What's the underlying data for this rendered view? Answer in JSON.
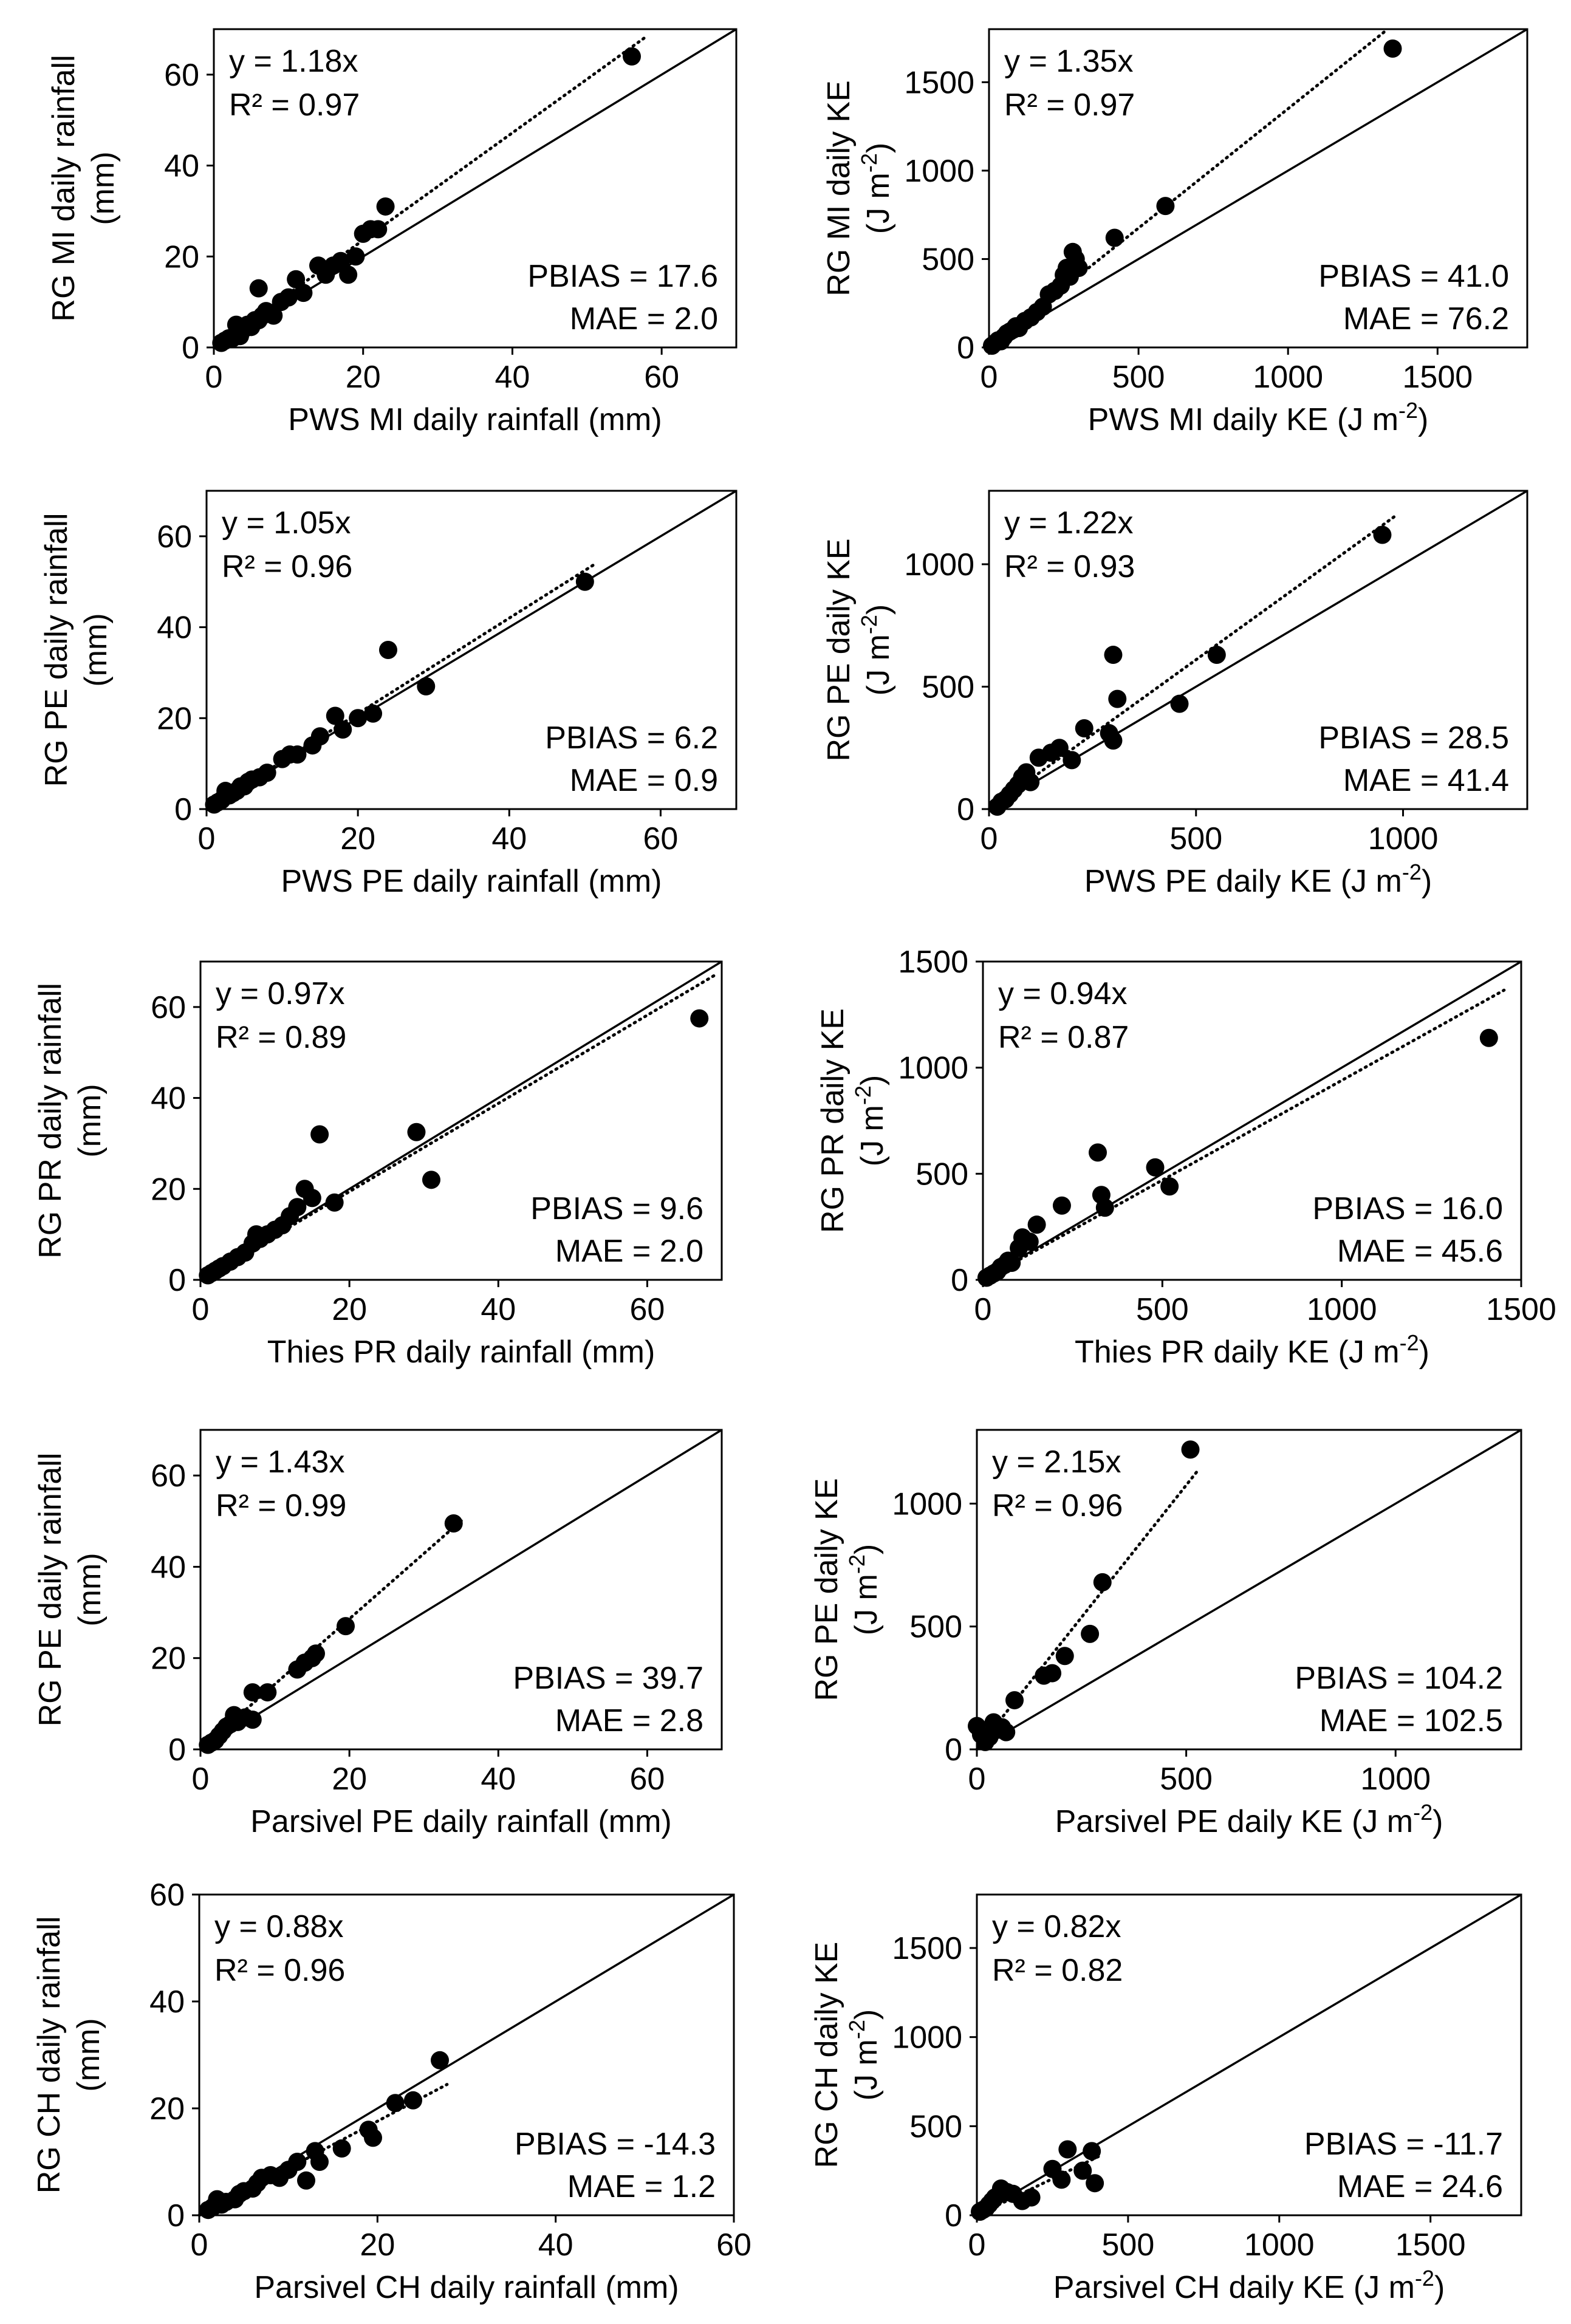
{
  "figure": {
    "description_title": "Rain gauge vs disdrometer daily rainfall and kinetic energy scatter plots"
  },
  "chart_data": [
    {
      "type": "scatter",
      "panel": "MI rainfall",
      "xlabel": "PWS MI daily rainfall (mm)",
      "ylabel_line1": "RG MI daily rainfall",
      "ylabel_line2": "(mm)",
      "xlim": [
        0,
        70
      ],
      "ylim": [
        0,
        70
      ],
      "xticks": [
        0,
        20,
        40,
        60
      ],
      "yticks": [
        0,
        20,
        40,
        60
      ],
      "fit_slope": 1.18,
      "equation": "y = 1.18x",
      "r2": "R² = 0.97",
      "pbias": "PBIAS = 17.6",
      "mae": "MAE = 2.0",
      "points": [
        [
          1,
          1
        ],
        [
          1.5,
          1.5
        ],
        [
          2,
          2
        ],
        [
          2.5,
          2
        ],
        [
          3,
          3
        ],
        [
          3,
          5
        ],
        [
          3.5,
          2.5
        ],
        [
          4,
          4
        ],
        [
          4.5,
          5
        ],
        [
          5,
          4.5
        ],
        [
          5.5,
          6
        ],
        [
          6,
          6
        ],
        [
          6,
          13
        ],
        [
          6.5,
          7
        ],
        [
          7,
          8
        ],
        [
          8,
          7
        ],
        [
          9,
          10
        ],
        [
          10,
          11
        ],
        [
          11,
          15
        ],
        [
          12,
          12
        ],
        [
          14,
          18
        ],
        [
          15,
          16
        ],
        [
          16,
          18
        ],
        [
          17,
          19
        ],
        [
          18,
          16
        ],
        [
          19,
          20
        ],
        [
          20,
          25
        ],
        [
          21,
          26
        ],
        [
          22,
          26
        ],
        [
          23,
          31
        ],
        [
          56,
          64
        ]
      ]
    },
    {
      "type": "scatter",
      "panel": "MI kinetic energy",
      "xlabel": "PWS MI daily KE (J m",
      "ylabel_line1": "RG MI daily KE",
      "ylabel_line2": "(J m",
      "xlim": [
        0,
        1800
      ],
      "ylim": [
        0,
        1800
      ],
      "xticks": [
        0,
        500,
        1000,
        1500
      ],
      "yticks": [
        0,
        500,
        1000,
        1500
      ],
      "fit_slope": 1.35,
      "equation": "y = 1.35x",
      "r2": "R² = 0.97",
      "pbias": "PBIAS = 41.0",
      "mae": "MAE = 76.2",
      "points": [
        [
          10,
          10
        ],
        [
          20,
          25
        ],
        [
          30,
          40
        ],
        [
          40,
          35
        ],
        [
          50,
          60
        ],
        [
          60,
          80
        ],
        [
          70,
          90
        ],
        [
          80,
          100
        ],
        [
          90,
          120
        ],
        [
          100,
          110
        ],
        [
          120,
          150
        ],
        [
          140,
          170
        ],
        [
          160,
          200
        ],
        [
          180,
          230
        ],
        [
          200,
          300
        ],
        [
          220,
          320
        ],
        [
          240,
          350
        ],
        [
          250,
          410
        ],
        [
          260,
          450
        ],
        [
          270,
          400
        ],
        [
          280,
          540
        ],
        [
          290,
          500
        ],
        [
          300,
          450
        ],
        [
          420,
          620
        ],
        [
          590,
          800
        ],
        [
          1350,
          1690
        ]
      ]
    },
    {
      "type": "scatter",
      "panel": "PE rainfall",
      "xlabel": "PWS PE daily rainfall (mm)",
      "ylabel_line1": "RG PE daily rainfall",
      "ylabel_line2": "(mm)",
      "xlim": [
        0,
        70
      ],
      "ylim": [
        0,
        70
      ],
      "xticks": [
        0,
        20,
        40,
        60
      ],
      "yticks": [
        0,
        20,
        40,
        60
      ],
      "fit_slope": 1.05,
      "equation": "y = 1.05x",
      "r2": "R² = 0.96",
      "pbias": "PBIAS = 6.2",
      "mae": "MAE = 0.9",
      "points": [
        [
          1,
          1
        ],
        [
          1.5,
          1.5
        ],
        [
          2,
          2
        ],
        [
          2.5,
          4
        ],
        [
          3,
          3
        ],
        [
          3.5,
          3.5
        ],
        [
          4,
          4
        ],
        [
          4.5,
          5
        ],
        [
          5,
          5
        ],
        [
          5.5,
          6
        ],
        [
          6,
          6.5
        ],
        [
          7,
          7
        ],
        [
          8,
          8
        ],
        [
          10,
          11
        ],
        [
          11,
          12
        ],
        [
          12,
          12
        ],
        [
          14,
          14
        ],
        [
          15,
          16
        ],
        [
          17,
          20.5
        ],
        [
          18,
          17.5
        ],
        [
          20,
          20
        ],
        [
          22,
          21
        ],
        [
          24,
          35
        ],
        [
          29,
          27
        ],
        [
          50,
          50
        ]
      ]
    },
    {
      "type": "scatter",
      "panel": "PE kinetic energy",
      "xlabel": "PWS PE daily KE (J m",
      "ylabel_line1": "RG PE daily KE",
      "ylabel_line2": "(J m",
      "xlim": [
        0,
        1300
      ],
      "ylim": [
        0,
        1300
      ],
      "xticks": [
        0,
        500,
        1000
      ],
      "yticks": [
        0,
        500,
        1000
      ],
      "fit_slope": 1.22,
      "equation": "y = 1.22x",
      "r2": "R² = 0.93",
      "pbias": "PBIAS = 28.5",
      "mae": "MAE = 41.4",
      "points": [
        [
          20,
          10
        ],
        [
          30,
          30
        ],
        [
          40,
          40
        ],
        [
          50,
          60
        ],
        [
          60,
          80
        ],
        [
          70,
          100
        ],
        [
          80,
          130
        ],
        [
          90,
          150
        ],
        [
          100,
          110
        ],
        [
          120,
          210
        ],
        [
          150,
          230
        ],
        [
          170,
          250
        ],
        [
          200,
          200
        ],
        [
          230,
          330
        ],
        [
          290,
          310
        ],
        [
          300,
          280
        ],
        [
          300,
          630
        ],
        [
          310,
          450
        ],
        [
          460,
          430
        ],
        [
          550,
          630
        ],
        [
          950,
          1120
        ]
      ]
    },
    {
      "type": "scatter",
      "panel": "PR rainfall",
      "xlabel": "Thies PR daily rainfall (mm)",
      "ylabel_line1": "RG PR daily rainfall",
      "ylabel_line2": "(mm)",
      "xlim": [
        0,
        70
      ],
      "ylim": [
        0,
        70
      ],
      "xticks": [
        0,
        20,
        40,
        60
      ],
      "yticks": [
        0,
        20,
        40,
        60
      ],
      "fit_slope": 0.97,
      "equation": "y = 0.97x",
      "r2": "R² = 0.89",
      "pbias": "PBIAS = 9.6",
      "mae": "MAE = 2.0",
      "points": [
        [
          1,
          1
        ],
        [
          1.5,
          1.5
        ],
        [
          2,
          2
        ],
        [
          2.5,
          2.5
        ],
        [
          3,
          3
        ],
        [
          4,
          4
        ],
        [
          5,
          5
        ],
        [
          6,
          6
        ],
        [
          7,
          8
        ],
        [
          7.5,
          10
        ],
        [
          8,
          9
        ],
        [
          9,
          10
        ],
        [
          10,
          11
        ],
        [
          11,
          12
        ],
        [
          12,
          14
        ],
        [
          13,
          16
        ],
        [
          14,
          20
        ],
        [
          15,
          18
        ],
        [
          16,
          32
        ],
        [
          18,
          17
        ],
        [
          29,
          32.5
        ],
        [
          31,
          22
        ],
        [
          67,
          57.5
        ]
      ]
    },
    {
      "type": "scatter",
      "panel": "PR kinetic energy",
      "xlabel": "Thies PR daily KE (J m",
      "ylabel_line1": "RG PR daily KE",
      "ylabel_line2": "(J m",
      "xlim": [
        0,
        1500
      ],
      "ylim": [
        0,
        1500
      ],
      "xticks": [
        0,
        500,
        1000,
        1500
      ],
      "yticks": [
        0,
        500,
        1000,
        1500
      ],
      "fit_slope": 0.94,
      "equation": "y = 0.94x",
      "r2": "R² = 0.87",
      "pbias": "PBIAS = 16.0",
      "mae": "MAE = 45.6",
      "points": [
        [
          10,
          10
        ],
        [
          20,
          20
        ],
        [
          30,
          30
        ],
        [
          40,
          40
        ],
        [
          50,
          60
        ],
        [
          60,
          70
        ],
        [
          70,
          90
        ],
        [
          80,
          80
        ],
        [
          100,
          150
        ],
        [
          110,
          200
        ],
        [
          130,
          180
        ],
        [
          150,
          260
        ],
        [
          220,
          350
        ],
        [
          320,
          600
        ],
        [
          330,
          400
        ],
        [
          340,
          340
        ],
        [
          480,
          530
        ],
        [
          520,
          440
        ],
        [
          1410,
          1140
        ]
      ]
    },
    {
      "type": "scatter",
      "panel": "Parsivel PE rainfall",
      "xlabel": "Parsivel PE daily rainfall (mm)",
      "ylabel_line1": "RG PE daily rainfall",
      "ylabel_line2": "(mm)",
      "xlim": [
        0,
        70
      ],
      "ylim": [
        0,
        70
      ],
      "xticks": [
        0,
        20,
        40,
        60
      ],
      "yticks": [
        0,
        20,
        40,
        60
      ],
      "fit_slope": 1.43,
      "equation": "y = 1.43x",
      "r2": "R² = 0.99",
      "pbias": "PBIAS = 39.7",
      "mae": "MAE = 2.8",
      "points": [
        [
          1,
          1
        ],
        [
          1.5,
          1.5
        ],
        [
          2,
          2
        ],
        [
          2.5,
          3
        ],
        [
          3,
          4
        ],
        [
          3.5,
          5
        ],
        [
          4,
          5.5
        ],
        [
          4.5,
          7.5
        ],
        [
          5,
          6
        ],
        [
          6,
          7
        ],
        [
          7,
          12.5
        ],
        [
          7,
          6.5
        ],
        [
          9,
          12.5
        ],
        [
          13,
          17.5
        ],
        [
          14,
          19
        ],
        [
          15,
          20
        ],
        [
          15.5,
          21
        ],
        [
          19.5,
          27
        ],
        [
          34,
          49.5
        ]
      ]
    },
    {
      "type": "scatter",
      "panel": "Parsivel PE kinetic energy",
      "xlabel": "Parsivel PE daily KE (J m",
      "ylabel_line1": "RG PE daily KE",
      "ylabel_line2": "(J m",
      "xlim": [
        0,
        1300
      ],
      "ylim": [
        0,
        1300
      ],
      "xticks": [
        0,
        500,
        1000
      ],
      "yticks": [
        0,
        500,
        1000
      ],
      "fit_slope": 2.15,
      "equation": "y = 2.15x",
      "r2": "R² = 0.96",
      "pbias": "PBIAS = 104.2",
      "mae": "MAE = 102.5",
      "points": [
        [
          0,
          95
        ],
        [
          10,
          60
        ],
        [
          20,
          30
        ],
        [
          30,
          50
        ],
        [
          40,
          110
        ],
        [
          50,
          80
        ],
        [
          60,
          90
        ],
        [
          70,
          70
        ],
        [
          90,
          200
        ],
        [
          160,
          300
        ],
        [
          180,
          310
        ],
        [
          210,
          380
        ],
        [
          270,
          470
        ],
        [
          300,
          680
        ],
        [
          510,
          1220
        ]
      ]
    },
    {
      "type": "scatter",
      "panel": "Parsivel CH rainfall",
      "xlabel": "Parsivel CH daily rainfall (mm)",
      "ylabel_line1": "RG CH daily rainfall",
      "ylabel_line2": "(mm)",
      "xlim": [
        0,
        60
      ],
      "ylim": [
        0,
        60
      ],
      "xticks": [
        0,
        20,
        40,
        60
      ],
      "yticks": [
        0,
        20,
        40,
        60
      ],
      "fit_slope": 0.88,
      "equation": "y = 0.88x",
      "r2": "R² = 0.96",
      "pbias": "PBIAS = -14.3",
      "mae": "MAE = 1.2",
      "points": [
        [
          1,
          1
        ],
        [
          1.5,
          1.5
        ],
        [
          2,
          3
        ],
        [
          2.5,
          2
        ],
        [
          3,
          2.5
        ],
        [
          4,
          3
        ],
        [
          4.5,
          4
        ],
        [
          5,
          4.5
        ],
        [
          6,
          5
        ],
        [
          6.5,
          6
        ],
        [
          7,
          7
        ],
        [
          8,
          7.5
        ],
        [
          9,
          7
        ],
        [
          10,
          8.5
        ],
        [
          11,
          10
        ],
        [
          12,
          6.5
        ],
        [
          13,
          12
        ],
        [
          13.5,
          10
        ],
        [
          16,
          12.5
        ],
        [
          19,
          16
        ],
        [
          19.5,
          14.5
        ],
        [
          22,
          21
        ],
        [
          24,
          21.5
        ],
        [
          27,
          29
        ]
      ]
    },
    {
      "type": "scatter",
      "panel": "Parsivel CH kinetic energy",
      "xlabel": "Parsivel CH daily KE (J m",
      "ylabel_line1": "RG CH daily KE",
      "ylabel_line2": "(J m",
      "xlim": [
        0,
        1800
      ],
      "ylim": [
        0,
        1800
      ],
      "xticks": [
        0,
        500,
        1000,
        1500
      ],
      "yticks": [
        0,
        500,
        1000,
        1500
      ],
      "fit_slope": 0.82,
      "equation": "y = 0.82x",
      "r2": "R² = 0.82",
      "pbias": "PBIAS = -11.7",
      "mae": "MAE = 24.6",
      "points": [
        [
          10,
          20
        ],
        [
          20,
          30
        ],
        [
          30,
          40
        ],
        [
          40,
          60
        ],
        [
          50,
          80
        ],
        [
          60,
          100
        ],
        [
          80,
          150
        ],
        [
          100,
          130
        ],
        [
          120,
          120
        ],
        [
          150,
          80
        ],
        [
          180,
          100
        ],
        [
          250,
          260
        ],
        [
          280,
          200
        ],
        [
          300,
          370
        ],
        [
          350,
          250
        ],
        [
          380,
          360
        ],
        [
          390,
          180
        ]
      ]
    }
  ]
}
